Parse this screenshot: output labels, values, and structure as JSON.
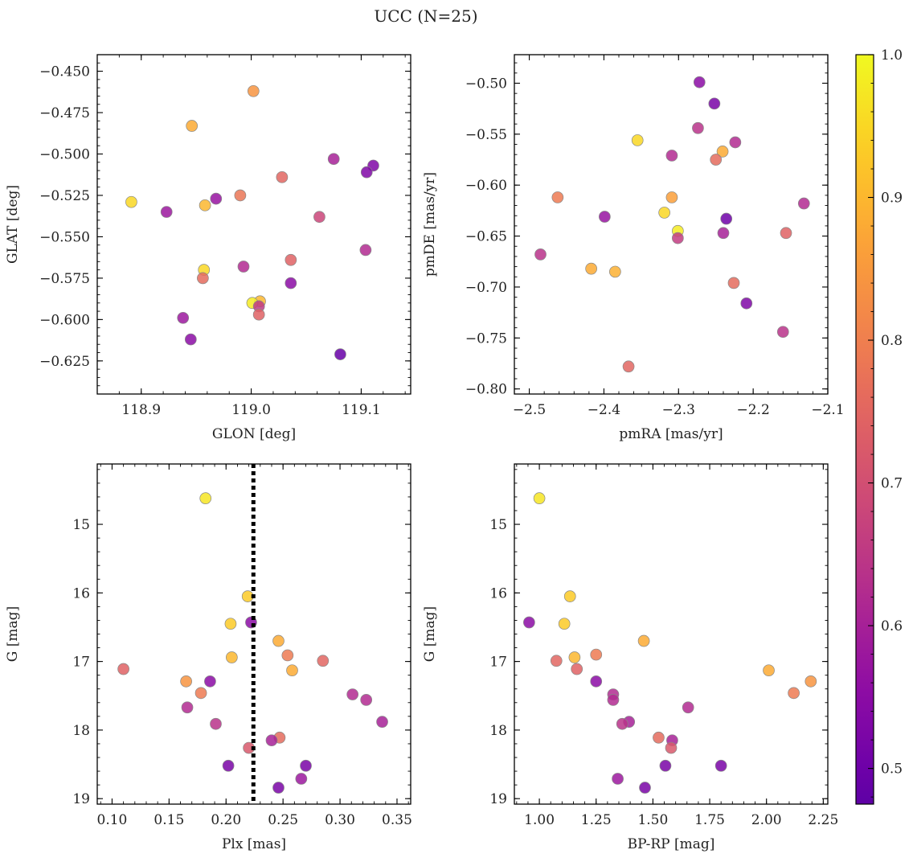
{
  "figure": {
    "title": "UCC (N=25)",
    "colorbar": {
      "vmin": 0.475,
      "vmax": 1.0,
      "ticks": [
        "0.5",
        "0.6",
        "0.7",
        "0.8",
        "0.9",
        "1.0"
      ],
      "colormap": "plasma"
    },
    "marker_edge_color": "#888888"
  },
  "chart_data": [
    {
      "type": "scatter",
      "title": "",
      "xlabel": "GLON [deg]",
      "ylabel": "GLAT [deg]",
      "xlim": [
        118.86,
        119.145
      ],
      "ylim": [
        -0.645,
        -0.44
      ],
      "y_inverted": false,
      "xticks": [
        "118.9",
        "119.0",
        "119.1"
      ],
      "yticks": [
        "−0.450",
        "−0.475",
        "−0.500",
        "−0.525",
        "−0.550",
        "−0.575",
        "−0.600",
        "−0.625"
      ],
      "points": [
        {
          "x": 119.002,
          "y": -0.462,
          "c": 0.84
        },
        {
          "x": 118.946,
          "y": -0.483,
          "c": 0.88
        },
        {
          "x": 119.075,
          "y": -0.503,
          "c": 0.6
        },
        {
          "x": 119.111,
          "y": -0.507,
          "c": 0.53
        },
        {
          "x": 119.105,
          "y": -0.511,
          "c": 0.53
        },
        {
          "x": 119.028,
          "y": -0.514,
          "c": 0.75
        },
        {
          "x": 118.968,
          "y": -0.527,
          "c": 0.57
        },
        {
          "x": 118.99,
          "y": -0.525,
          "c": 0.78
        },
        {
          "x": 118.891,
          "y": -0.529,
          "c": 0.95
        },
        {
          "x": 118.958,
          "y": -0.531,
          "c": 0.9
        },
        {
          "x": 118.923,
          "y": -0.535,
          "c": 0.58
        },
        {
          "x": 119.062,
          "y": -0.538,
          "c": 0.68
        },
        {
          "x": 119.104,
          "y": -0.558,
          "c": 0.62
        },
        {
          "x": 119.036,
          "y": -0.564,
          "c": 0.74
        },
        {
          "x": 118.993,
          "y": -0.568,
          "c": 0.62
        },
        {
          "x": 118.957,
          "y": -0.57,
          "c": 0.95
        },
        {
          "x": 118.956,
          "y": -0.575,
          "c": 0.76
        },
        {
          "x": 119.036,
          "y": -0.578,
          "c": 0.55
        },
        {
          "x": 119.008,
          "y": -0.589,
          "c": 0.9
        },
        {
          "x": 119.001,
          "y": -0.59,
          "c": 0.98
        },
        {
          "x": 119.007,
          "y": -0.592,
          "c": 0.65
        },
        {
          "x": 119.007,
          "y": -0.597,
          "c": 0.74
        },
        {
          "x": 118.938,
          "y": -0.599,
          "c": 0.58
        },
        {
          "x": 118.945,
          "y": -0.612,
          "c": 0.55
        },
        {
          "x": 119.081,
          "y": -0.621,
          "c": 0.49
        }
      ]
    },
    {
      "type": "scatter",
      "title": "",
      "xlabel": "pmRA [mas/yr]",
      "ylabel": "pmDE [mas/yr]",
      "xlim": [
        -2.52,
        -2.1
      ],
      "ylim": [
        -0.805,
        -0.472
      ],
      "y_inverted": false,
      "xticks": [
        "−2.5",
        "−2.4",
        "−2.3",
        "−2.2",
        "−2.1"
      ],
      "yticks": [
        "−0.50",
        "−0.55",
        "−0.60",
        "−0.65",
        "−0.70",
        "−0.75",
        "−0.80"
      ],
      "points": [
        {
          "x": -2.272,
          "y": -0.499,
          "c": 0.55
        },
        {
          "x": -2.252,
          "y": -0.52,
          "c": 0.52
        },
        {
          "x": -2.274,
          "y": -0.544,
          "c": 0.64
        },
        {
          "x": -2.355,
          "y": -0.556,
          "c": 0.95
        },
        {
          "x": -2.224,
          "y": -0.558,
          "c": 0.62
        },
        {
          "x": -2.241,
          "y": -0.567,
          "c": 0.88
        },
        {
          "x": -2.309,
          "y": -0.571,
          "c": 0.62
        },
        {
          "x": -2.25,
          "y": -0.575,
          "c": 0.76
        },
        {
          "x": -2.462,
          "y": -0.612,
          "c": 0.79
        },
        {
          "x": -2.309,
          "y": -0.612,
          "c": 0.86
        },
        {
          "x": -2.132,
          "y": -0.618,
          "c": 0.62
        },
        {
          "x": -2.319,
          "y": -0.627,
          "c": 0.95
        },
        {
          "x": -2.399,
          "y": -0.631,
          "c": 0.57
        },
        {
          "x": -2.236,
          "y": -0.633,
          "c": 0.5
        },
        {
          "x": -2.301,
          "y": -0.645,
          "c": 0.98
        },
        {
          "x": -2.24,
          "y": -0.647,
          "c": 0.6
        },
        {
          "x": -2.156,
          "y": -0.647,
          "c": 0.74
        },
        {
          "x": -2.301,
          "y": -0.652,
          "c": 0.66
        },
        {
          "x": -2.485,
          "y": -0.668,
          "c": 0.64
        },
        {
          "x": -2.417,
          "y": -0.682,
          "c": 0.88
        },
        {
          "x": -2.385,
          "y": -0.685,
          "c": 0.89
        },
        {
          "x": -2.226,
          "y": -0.696,
          "c": 0.76
        },
        {
          "x": -2.209,
          "y": -0.716,
          "c": 0.53
        },
        {
          "x": -2.16,
          "y": -0.744,
          "c": 0.64
        },
        {
          "x": -2.367,
          "y": -0.778,
          "c": 0.75
        }
      ]
    },
    {
      "type": "scatter",
      "title": "",
      "xlabel": "Plx [mas]",
      "ylabel": "G [mag]",
      "xlim": [
        0.087,
        0.362
      ],
      "ylim": [
        19.08,
        14.12
      ],
      "y_inverted": true,
      "xticks": [
        "0.10",
        "0.15",
        "0.20",
        "0.25",
        "0.30",
        "0.35"
      ],
      "yticks": [
        "15",
        "16",
        "17",
        "18",
        "19"
      ],
      "vline": {
        "x": 0.224,
        "style": "dotted"
      },
      "points": [
        {
          "x": 0.182,
          "y": 14.62,
          "c": 0.97
        },
        {
          "x": 0.219,
          "y": 16.05,
          "c": 0.93
        },
        {
          "x": 0.222,
          "y": 16.43,
          "c": 0.55
        },
        {
          "x": 0.204,
          "y": 16.45,
          "c": 0.93
        },
        {
          "x": 0.246,
          "y": 16.7,
          "c": 0.88
        },
        {
          "x": 0.254,
          "y": 16.91,
          "c": 0.79
        },
        {
          "x": 0.205,
          "y": 16.94,
          "c": 0.9
        },
        {
          "x": 0.285,
          "y": 16.99,
          "c": 0.75
        },
        {
          "x": 0.11,
          "y": 17.11,
          "c": 0.74
        },
        {
          "x": 0.258,
          "y": 17.13,
          "c": 0.88
        },
        {
          "x": 0.165,
          "y": 17.29,
          "c": 0.84
        },
        {
          "x": 0.186,
          "y": 17.29,
          "c": 0.55
        },
        {
          "x": 0.178,
          "y": 17.46,
          "c": 0.79
        },
        {
          "x": 0.311,
          "y": 17.48,
          "c": 0.62
        },
        {
          "x": 0.323,
          "y": 17.56,
          "c": 0.62
        },
        {
          "x": 0.166,
          "y": 17.67,
          "c": 0.62
        },
        {
          "x": 0.337,
          "y": 17.88,
          "c": 0.6
        },
        {
          "x": 0.191,
          "y": 17.91,
          "c": 0.64
        },
        {
          "x": 0.247,
          "y": 18.11,
          "c": 0.76
        },
        {
          "x": 0.24,
          "y": 18.15,
          "c": 0.6
        },
        {
          "x": 0.22,
          "y": 18.26,
          "c": 0.72
        },
        {
          "x": 0.202,
          "y": 18.52,
          "c": 0.52
        },
        {
          "x": 0.27,
          "y": 18.52,
          "c": 0.52
        },
        {
          "x": 0.266,
          "y": 18.71,
          "c": 0.58
        },
        {
          "x": 0.246,
          "y": 18.84,
          "c": 0.52
        }
      ]
    },
    {
      "type": "scatter",
      "title": "",
      "xlabel": "BP-RP [mag]",
      "ylabel": "G [mag]",
      "xlim": [
        0.89,
        2.27
      ],
      "ylim": [
        19.08,
        14.12
      ],
      "y_inverted": true,
      "xticks": [
        "1.00",
        "1.25",
        "1.50",
        "1.75",
        "2.00",
        "2.25"
      ],
      "yticks": [
        "15",
        "16",
        "17",
        "18",
        "19"
      ],
      "points": [
        {
          "x": 1.0,
          "y": 14.62,
          "c": 0.97
        },
        {
          "x": 1.135,
          "y": 16.05,
          "c": 0.93
        },
        {
          "x": 0.955,
          "y": 16.43,
          "c": 0.55
        },
        {
          "x": 1.11,
          "y": 16.45,
          "c": 0.93
        },
        {
          "x": 1.46,
          "y": 16.7,
          "c": 0.88
        },
        {
          "x": 1.25,
          "y": 16.9,
          "c": 0.79
        },
        {
          "x": 1.155,
          "y": 16.94,
          "c": 0.9
        },
        {
          "x": 1.075,
          "y": 16.99,
          "c": 0.75
        },
        {
          "x": 1.165,
          "y": 17.11,
          "c": 0.74
        },
        {
          "x": 2.01,
          "y": 17.13,
          "c": 0.88
        },
        {
          "x": 2.195,
          "y": 17.29,
          "c": 0.84
        },
        {
          "x": 1.25,
          "y": 17.29,
          "c": 0.55
        },
        {
          "x": 2.12,
          "y": 17.46,
          "c": 0.79
        },
        {
          "x": 1.325,
          "y": 17.48,
          "c": 0.62
        },
        {
          "x": 1.325,
          "y": 17.56,
          "c": 0.62
        },
        {
          "x": 1.655,
          "y": 17.67,
          "c": 0.62
        },
        {
          "x": 1.395,
          "y": 17.88,
          "c": 0.6
        },
        {
          "x": 1.365,
          "y": 17.91,
          "c": 0.64
        },
        {
          "x": 1.525,
          "y": 18.11,
          "c": 0.76
        },
        {
          "x": 1.585,
          "y": 18.15,
          "c": 0.6
        },
        {
          "x": 1.58,
          "y": 18.26,
          "c": 0.72
        },
        {
          "x": 1.555,
          "y": 18.52,
          "c": 0.52
        },
        {
          "x": 1.8,
          "y": 18.52,
          "c": 0.52
        },
        {
          "x": 1.345,
          "y": 18.71,
          "c": 0.58
        },
        {
          "x": 1.465,
          "y": 18.84,
          "c": 0.52
        }
      ]
    }
  ]
}
